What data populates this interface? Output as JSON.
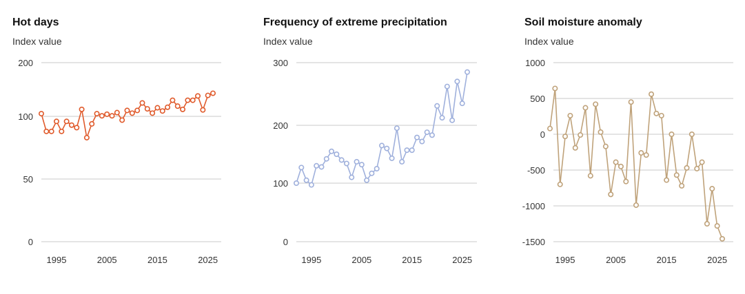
{
  "chart_data": [
    {
      "type": "line",
      "title": "Hot days",
      "ylabel": "Index value",
      "color": "#e05a2b",
      "y_ticks": [
        0,
        50,
        100,
        200
      ],
      "x_ticks": [
        1995,
        2005,
        2015,
        2025
      ],
      "series": [
        {
          "x": [
            1992,
            1993,
            1994,
            1995,
            1996,
            1997,
            1998,
            1999,
            2000,
            2001,
            2002,
            2003,
            2004,
            2005,
            2006,
            2007,
            2008,
            2009,
            2010,
            2011,
            2012,
            2013,
            2014,
            2015,
            2016,
            2017,
            2018,
            2019,
            2020,
            2021,
            2022,
            2023,
            2024,
            2025,
            2026
          ],
          "values": [
            105,
            88,
            88,
            96,
            88,
            96,
            93,
            91,
            113,
            83,
            94,
            105,
            101,
            104,
            101,
            107,
            97,
            111,
            106,
            111,
            125,
            114,
            106,
            116,
            110,
            117,
            130,
            119,
            113,
            130,
            130,
            138,
            112,
            139,
            143
          ]
        }
      ]
    },
    {
      "type": "line",
      "title": "Frequency of extreme precipitation",
      "ylabel": "Index value",
      "color": "#9fb0dc",
      "y_ticks": [
        0,
        100,
        200,
        300
      ],
      "x_ticks": [
        1995,
        2005,
        2015,
        2025
      ],
      "series": [
        {
          "x": [
            1992,
            1993,
            1994,
            1995,
            1996,
            1997,
            1998,
            1999,
            2000,
            2001,
            2002,
            2003,
            2004,
            2005,
            2006,
            2007,
            2008,
            2009,
            2010,
            2011,
            2012,
            2013,
            2014,
            2015,
            2016,
            2017,
            2018,
            2019,
            2020,
            2021,
            2022,
            2023,
            2024,
            2025,
            2026
          ],
          "values": [
            100,
            127,
            105,
            97,
            130,
            128,
            142,
            155,
            150,
            140,
            134,
            110,
            137,
            132,
            105,
            117,
            125,
            165,
            160,
            143,
            195,
            137,
            157,
            157,
            179,
            172,
            188,
            183,
            231,
            212,
            262,
            208,
            270,
            235,
            285
          ]
        }
      ]
    },
    {
      "type": "line",
      "title": "Soil moisture anomaly",
      "ylabel": "Index value",
      "color": "#bfa27a",
      "y_ticks": [
        1000,
        500,
        0,
        -500,
        -1000,
        -1500
      ],
      "x_ticks": [
        1995,
        2005,
        2015,
        2025
      ],
      "ylim": [
        -1500,
        1000
      ],
      "series": [
        {
          "x": [
            1992,
            1993,
            1994,
            1995,
            1996,
            1997,
            1998,
            1999,
            2000,
            2001,
            2002,
            2003,
            2004,
            2005,
            2006,
            2007,
            2008,
            2009,
            2010,
            2011,
            2012,
            2013,
            2014,
            2015,
            2016,
            2017,
            2018,
            2019,
            2020,
            2021,
            2022,
            2023,
            2024,
            2025,
            2026
          ],
          "values": [
            80,
            640,
            -700,
            -30,
            260,
            -190,
            -10,
            370,
            -580,
            420,
            30,
            -170,
            -840,
            -390,
            -450,
            -660,
            450,
            -990,
            -260,
            -290,
            560,
            290,
            260,
            -640,
            0,
            -570,
            -720,
            -470,
            0,
            -480,
            -390,
            -1250,
            -760,
            -1280,
            -1460
          ]
        }
      ]
    }
  ]
}
